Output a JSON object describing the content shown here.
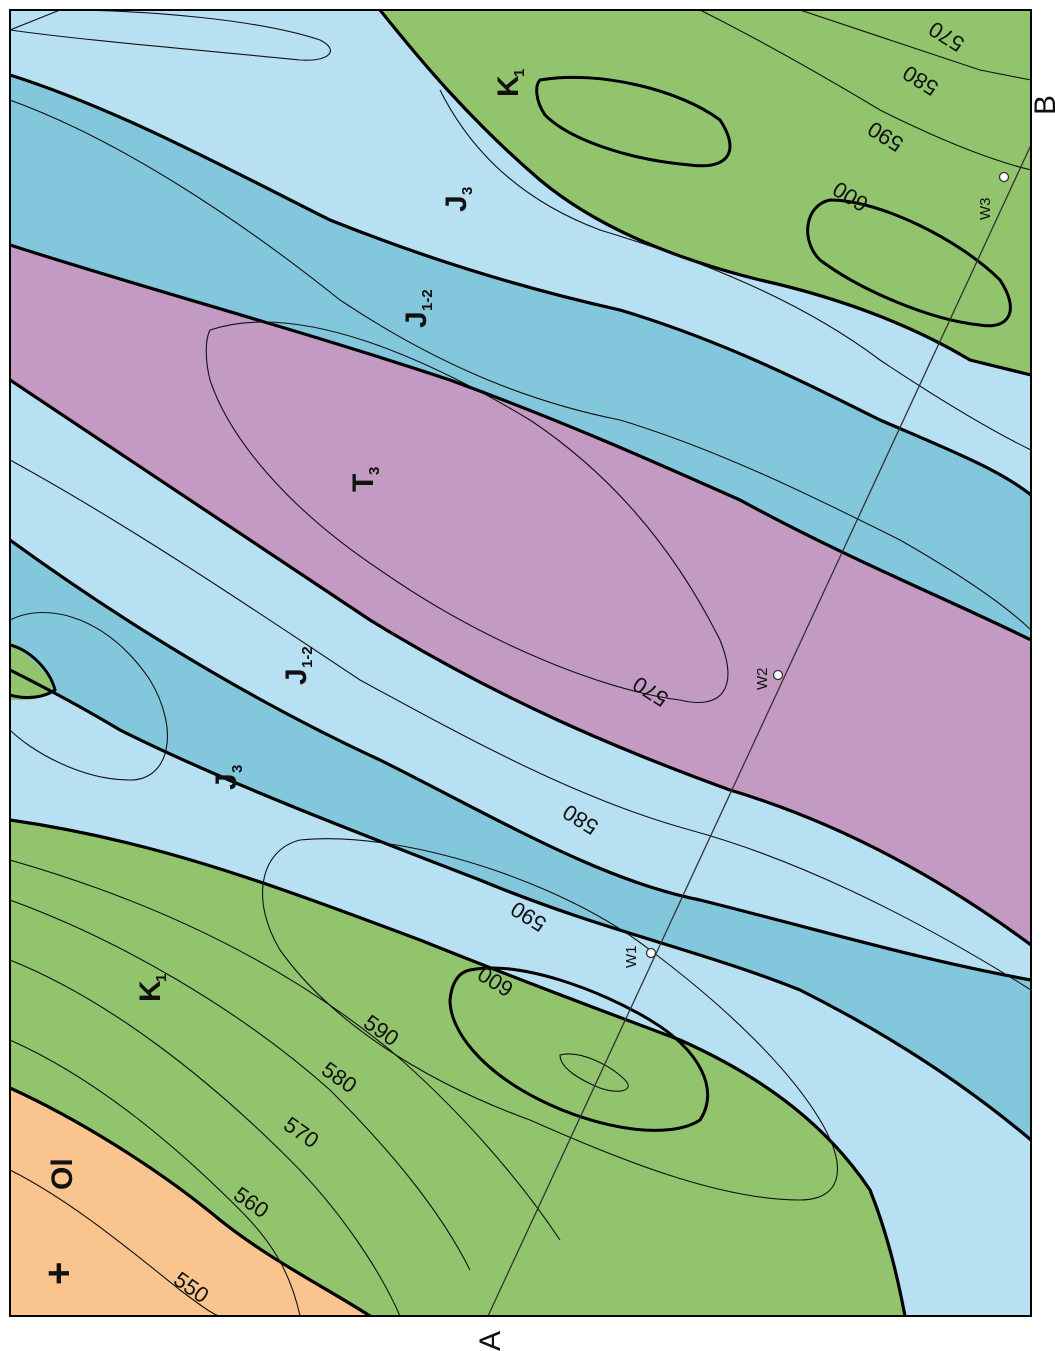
{
  "map": {
    "section_line": {
      "start_label": "A",
      "end_label": "B"
    },
    "wells": [
      {
        "label": "W1"
      },
      {
        "label": "W2"
      },
      {
        "label": "W3"
      }
    ],
    "units": [
      {
        "id": "Ol",
        "label": "Ol",
        "sub": "",
        "color": "#f9c48e"
      },
      {
        "id": "K1-west",
        "label": "K",
        "sub": "1",
        "color": "#92c46e"
      },
      {
        "id": "J3-west",
        "label": "J",
        "sub": "3",
        "color": "#b8e0f3"
      },
      {
        "id": "J12-west",
        "label": "J",
        "sub": "1-2",
        "color": "#83c7dd"
      },
      {
        "id": "T3",
        "label": "T",
        "sub": "3",
        "color": "#c39ac1"
      },
      {
        "id": "J12-east",
        "label": "J",
        "sub": "1-2",
        "color": "#83c7dd"
      },
      {
        "id": "J3-east",
        "label": "J",
        "sub": "3",
        "color": "#b8e0f3"
      },
      {
        "id": "K1-east",
        "label": "K",
        "sub": "1",
        "color": "#92c46e"
      }
    ],
    "contour_labels": [
      "550",
      "560",
      "570",
      "580",
      "590",
      "600",
      "590",
      "580",
      "570",
      "600",
      "590",
      "580",
      "570"
    ],
    "symbol": "+"
  }
}
